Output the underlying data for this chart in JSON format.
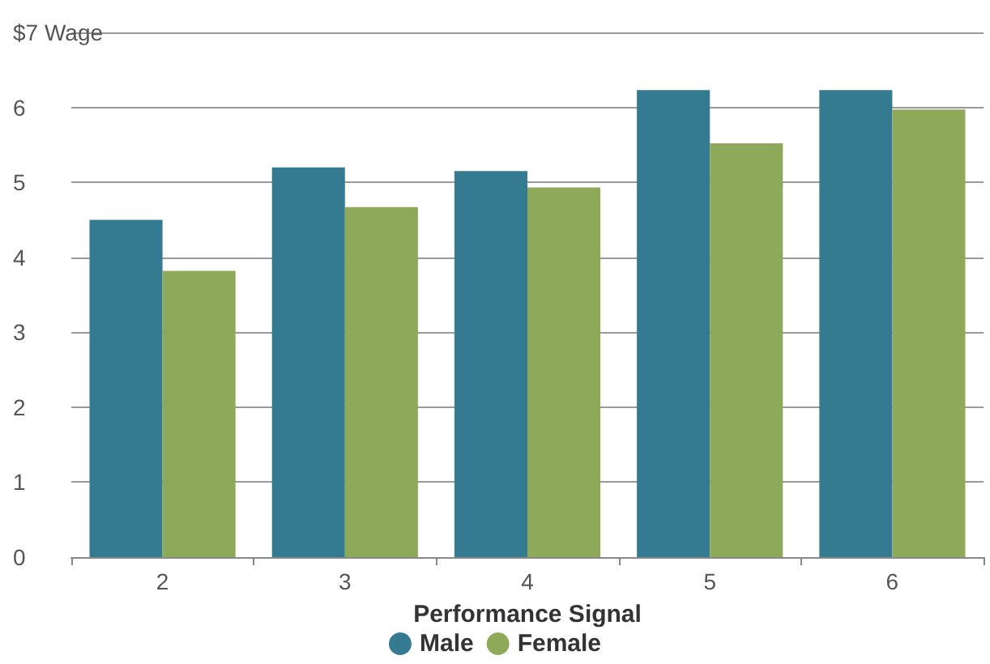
{
  "chart_data": {
    "type": "bar",
    "xlabel": "Performance Signal",
    "categories": [
      "2",
      "3",
      "4",
      "5",
      "6"
    ],
    "series": [
      {
        "name": "Male",
        "color": "#347b92",
        "values": [
          4.5,
          5.2,
          5.15,
          6.23,
          6.23
        ]
      },
      {
        "name": "Female",
        "color": "#8fa95a",
        "values": [
          3.82,
          4.67,
          4.93,
          5.52,
          5.97
        ]
      }
    ],
    "ylim": [
      0,
      7
    ],
    "yticks": [
      0,
      1,
      2,
      3,
      4,
      5,
      6,
      {
        "value": 7,
        "label": "$7 Wage"
      }
    ],
    "grid": "y",
    "legend": "bottom"
  }
}
